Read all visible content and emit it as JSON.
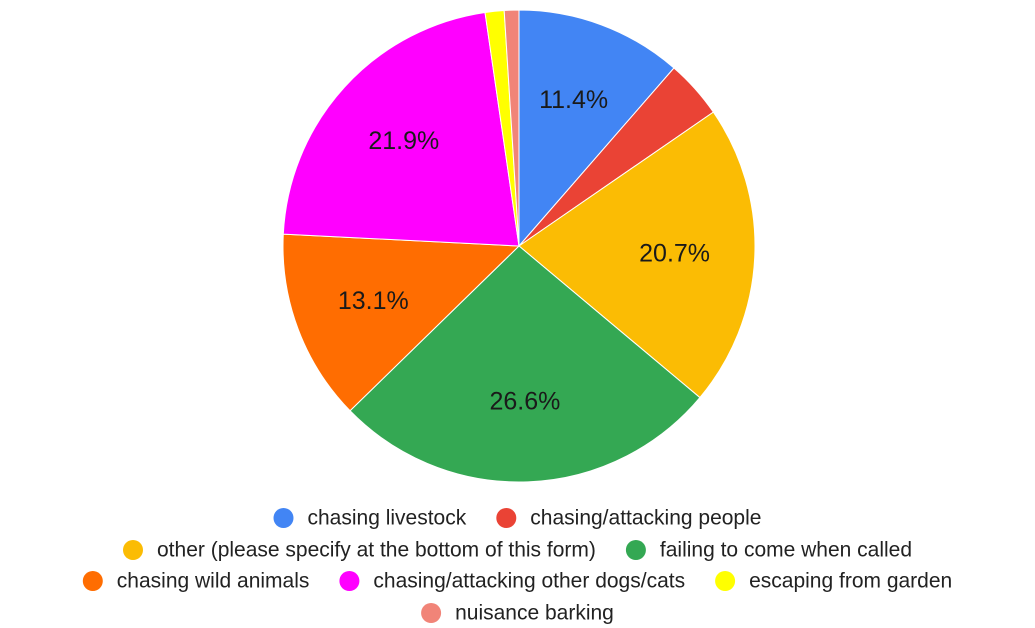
{
  "chart_data": {
    "type": "pie",
    "slices": [
      {
        "label": "chasing livestock",
        "value": 11.4,
        "display": "11.4%",
        "color": "#4285f4"
      },
      {
        "label": "chasing/attacking people",
        "value": 4.0,
        "display": "",
        "color": "#ea4335"
      },
      {
        "label": "other (please specify at the bottom of this form)",
        "value": 20.7,
        "display": "20.7%",
        "color": "#fbbc04"
      },
      {
        "label": "failing to come when called",
        "value": 26.6,
        "display": "26.6%",
        "color": "#34a853"
      },
      {
        "label": "chasing wild animals",
        "value": 13.1,
        "display": "13.1%",
        "color": "#ff6d01"
      },
      {
        "label": "chasing/attacking other dogs/cats",
        "value": 21.9,
        "display": "21.9%",
        "color": "#ff00ff"
      },
      {
        "label": "escaping from garden",
        "value": 1.3,
        "display": "",
        "color": "#ffff00"
      },
      {
        "label": "nuisance barking",
        "value": 1.0,
        "display": "",
        "color": "#f18478"
      }
    ],
    "legend": {
      "placement": "bottom"
    }
  }
}
